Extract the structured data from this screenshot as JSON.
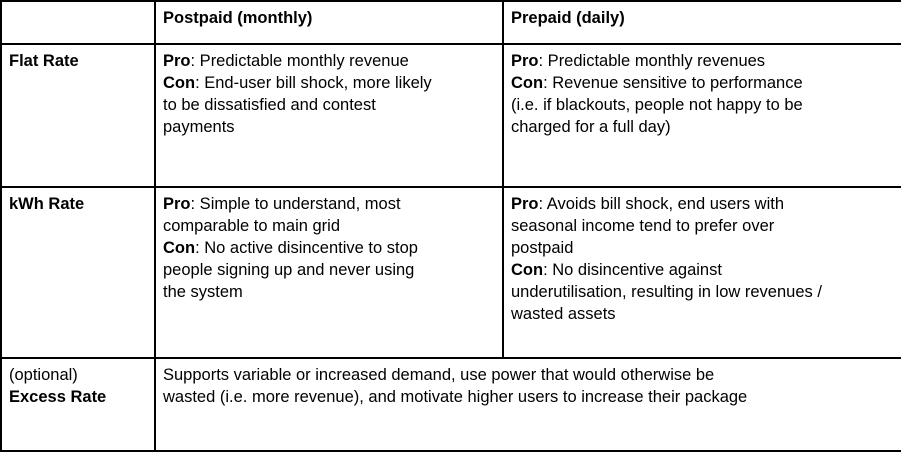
{
  "header": {
    "corner": "",
    "postpaid": "Postpaid (monthly)",
    "prepaid": "Prepaid (daily)"
  },
  "rows": {
    "flat_rate": {
      "label": "Flat Rate",
      "postpaid": {
        "pro_label": "Pro",
        "pro_text": ": Predictable monthly revenue",
        "con_label": "Con",
        "con_text": ": End-user bill shock, more likely\nto be dissatisfied and contest\npayments"
      },
      "prepaid": {
        "pro_label": "Pro",
        "pro_text": ": Predictable monthly revenues",
        "con_label": "Con",
        "con_text": ": Revenue sensitive to performance\n(i.e. if blackouts, people not happy to be\ncharged for a full day)"
      }
    },
    "kwh_rate": {
      "label": "kWh Rate",
      "postpaid": {
        "pro_label": "Pro",
        "pro_text": ": Simple to understand, most\ncomparable to main grid",
        "con_label": "Con",
        "con_text": ": No active disincentive to stop\npeople signing up and never using\nthe system"
      },
      "prepaid": {
        "pro_label": "Pro",
        "pro_text": ": Avoids bill shock, end users with\nseasonal income tend to prefer over\npostpaid",
        "con_label": "Con",
        "con_text": ": No disincentive against\nunderutilisation, resulting in low revenues /\nwasted assets"
      }
    },
    "excess_rate": {
      "label_prefix": "(optional)",
      "label": "Excess Rate",
      "description": "Supports variable or increased demand, use power that would otherwise be\nwasted (i.e. more revenue), and motivate higher users to increase their package"
    }
  },
  "colors": {
    "border": "#000000",
    "text": "#000000",
    "background": "#ffffff"
  }
}
